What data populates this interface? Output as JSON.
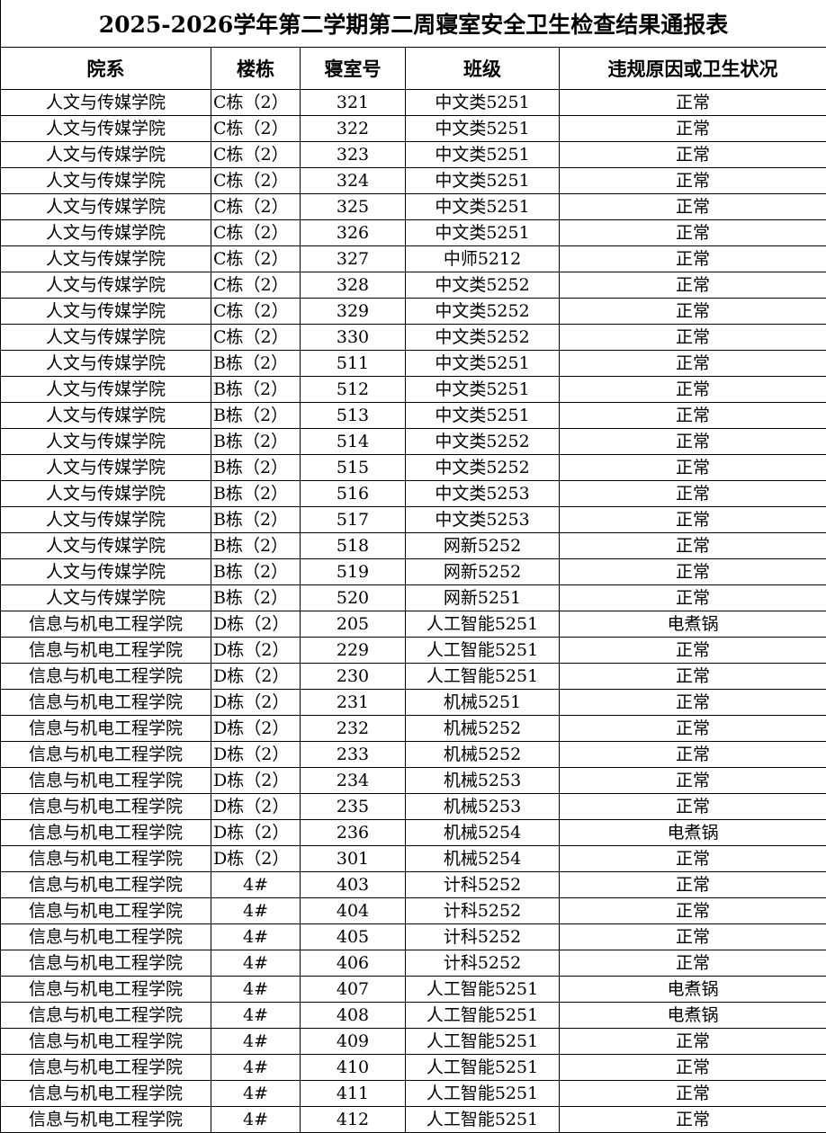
{
  "title": "2025-2026学年第二学期第二周寝室安全卫生检查结果通报表",
  "columns": [
    "院系",
    "楼栋",
    "寝室号",
    "班级",
    "违规原因或卫生状况"
  ],
  "rows": [
    [
      "人文与传媒学院",
      "C栋（2）",
      "321",
      "中文类5251",
      "正常"
    ],
    [
      "人文与传媒学院",
      "C栋（2）",
      "322",
      "中文类5251",
      "正常"
    ],
    [
      "人文与传媒学院",
      "C栋（2）",
      "323",
      "中文类5251",
      "正常"
    ],
    [
      "人文与传媒学院",
      "C栋（2）",
      "324",
      "中文类5251",
      "正常"
    ],
    [
      "人文与传媒学院",
      "C栋（2）",
      "325",
      "中文类5251",
      "正常"
    ],
    [
      "人文与传媒学院",
      "C栋（2）",
      "326",
      "中文类5251",
      "正常"
    ],
    [
      "人文与传媒学院",
      "C栋（2）",
      "327",
      "中师5212",
      "正常"
    ],
    [
      "人文与传媒学院",
      "C栋（2）",
      "328",
      "中文类5252",
      "正常"
    ],
    [
      "人文与传媒学院",
      "C栋（2）",
      "329",
      "中文类5252",
      "正常"
    ],
    [
      "人文与传媒学院",
      "C栋（2）",
      "330",
      "中文类5252",
      "正常"
    ],
    [
      "人文与传媒学院",
      "B栋（2）",
      "511",
      "中文类5251",
      "正常"
    ],
    [
      "人文与传媒学院",
      "B栋（2）",
      "512",
      "中文类5251",
      "正常"
    ],
    [
      "人文与传媒学院",
      "B栋（2）",
      "513",
      "中文类5251",
      "正常"
    ],
    [
      "人文与传媒学院",
      "B栋（2）",
      "514",
      "中文类5252",
      "正常"
    ],
    [
      "人文与传媒学院",
      "B栋（2）",
      "515",
      "中文类5252",
      "正常"
    ],
    [
      "人文与传媒学院",
      "B栋（2）",
      "516",
      "中文类5253",
      "正常"
    ],
    [
      "人文与传媒学院",
      "B栋（2）",
      "517",
      "中文类5253",
      "正常"
    ],
    [
      "人文与传媒学院",
      "B栋（2）",
      "518",
      "网新5252",
      "正常"
    ],
    [
      "人文与传媒学院",
      "B栋（2）",
      "519",
      "网新5252",
      "正常"
    ],
    [
      "人文与传媒学院",
      "B栋（2）",
      "520",
      "网新5251",
      "正常"
    ],
    [
      "信息与机电工程学院",
      "D栋（2）",
      "205",
      "人工智能5251",
      "电煮锅"
    ],
    [
      "信息与机电工程学院",
      "D栋（2）",
      "229",
      "人工智能5251",
      "正常"
    ],
    [
      "信息与机电工程学院",
      "D栋（2）",
      "230",
      "人工智能5251",
      "正常"
    ],
    [
      "信息与机电工程学院",
      "D栋（2）",
      "231",
      "机械5251",
      "正常"
    ],
    [
      "信息与机电工程学院",
      "D栋（2）",
      "232",
      "机械5252",
      "正常"
    ],
    [
      "信息与机电工程学院",
      "D栋（2）",
      "233",
      "机械5252",
      "正常"
    ],
    [
      "信息与机电工程学院",
      "D栋（2）",
      "234",
      "机械5253",
      "正常"
    ],
    [
      "信息与机电工程学院",
      "D栋（2）",
      "235",
      "机械5253",
      "正常"
    ],
    [
      "信息与机电工程学院",
      "D栋（2）",
      "236",
      "机械5254",
      "电煮锅"
    ],
    [
      "信息与机电工程学院",
      "D栋（2）",
      "301",
      "机械5254",
      "正常"
    ],
    [
      "信息与机电工程学院",
      "4#",
      "403",
      "计科5252",
      "正常"
    ],
    [
      "信息与机电工程学院",
      "4#",
      "404",
      "计科5252",
      "正常"
    ],
    [
      "信息与机电工程学院",
      "4#",
      "405",
      "计科5252",
      "正常"
    ],
    [
      "信息与机电工程学院",
      "4#",
      "406",
      "计科5252",
      "正常"
    ],
    [
      "信息与机电工程学院",
      "4#",
      "407",
      "人工智能5251",
      "电煮锅"
    ],
    [
      "信息与机电工程学院",
      "4#",
      "408",
      "人工智能5251",
      "电煮锅"
    ],
    [
      "信息与机电工程学院",
      "4#",
      "409",
      "人工智能5251",
      "正常"
    ],
    [
      "信息与机电工程学院",
      "4#",
      "410",
      "人工智能5251",
      "正常"
    ],
    [
      "信息与机电工程学院",
      "4#",
      "411",
      "人工智能5251",
      "正常"
    ],
    [
      "信息与机电工程学院",
      "4#",
      "412",
      "人工智能5251",
      "正常"
    ]
  ]
}
